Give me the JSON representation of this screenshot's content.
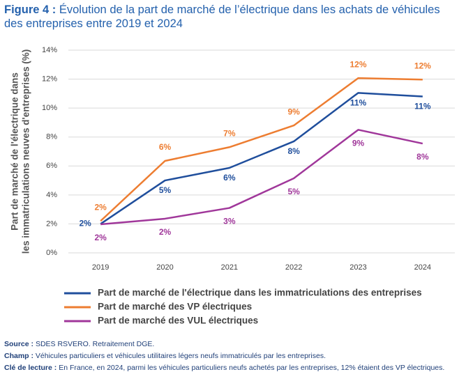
{
  "chart_data": {
    "type": "line",
    "title_prefix": "Figure 4 :",
    "title": "Évolution de la part de marché de l’électrique dans les achats de véhicules des entreprises entre 2019 et 2024",
    "ylabel": [
      "Part de marché de l'électrique dans",
      "les immatriculations neuves d'entreprises (%)"
    ],
    "categories": [
      "2019",
      "2020",
      "2021",
      "2022",
      "2023",
      "2024"
    ],
    "ylim": [
      0,
      14
    ],
    "yticks": [
      {
        "value": 0,
        "label": "0%"
      },
      {
        "value": 2,
        "label": "2%"
      },
      {
        "value": 4,
        "label": "4%"
      },
      {
        "value": 6,
        "label": "6%"
      },
      {
        "value": 8,
        "label": "8%"
      },
      {
        "value": 10,
        "label": "10%"
      },
      {
        "value": 12,
        "label": "12%"
      },
      {
        "value": 14,
        "label": "14%"
      }
    ],
    "grid": true,
    "series": [
      {
        "name": "Part de marché de l'électrique dans les immatriculations des entreprises",
        "color": "#1f4e9c",
        "values": [
          2.0,
          5.0,
          5.87,
          7.7,
          11.05,
          10.8
        ],
        "value_labels": [
          "2%",
          "5%",
          "6%",
          "8%",
          "11%",
          "11%"
        ]
      },
      {
        "name": "Part de marché des VP électriques",
        "color": "#ed7d31",
        "values": [
          2.2,
          6.35,
          7.3,
          8.8,
          12.07,
          11.97
        ],
        "value_labels": [
          "2%",
          "6%",
          "7%",
          "9%",
          "12%",
          "12%"
        ]
      },
      {
        "name": "Part de marché des VUL électriques",
        "color": "#a0379a",
        "values": [
          1.97,
          2.36,
          3.1,
          5.15,
          8.5,
          7.55
        ],
        "value_labels": [
          "2%",
          "2%",
          "3%",
          "5%",
          "9%",
          "8%"
        ]
      }
    ]
  },
  "notes": [
    {
      "label": "Source :",
      "text": "SDES RSVERO. Retraitement DGE."
    },
    {
      "label": "Champ :",
      "text": "Véhicules particuliers et véhicules utilitaires légers neufs immatriculés par les entreprises."
    },
    {
      "label": "Clé de lecture :",
      "text": "En France, en 2024, parmi les véhicules particuliers neufs achetés par les entreprises, 12% étaient des VP électriques."
    }
  ]
}
